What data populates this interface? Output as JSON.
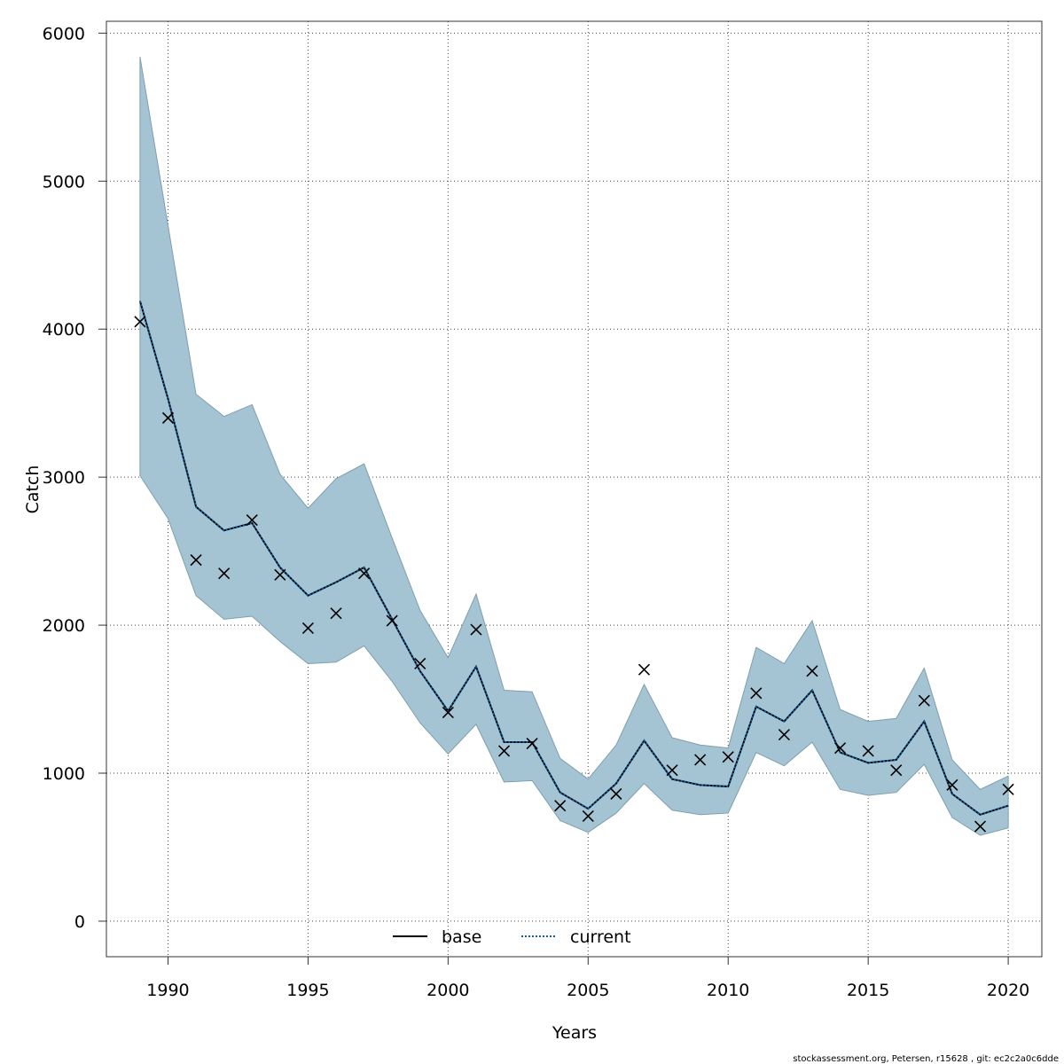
{
  "chart_data": {
    "type": "line",
    "xlabel": "Years",
    "ylabel": "Catch",
    "xlim": [
      1987.8,
      2021.2
    ],
    "ylim": [
      -240,
      6080
    ],
    "x_ticks": [
      1990,
      1995,
      2000,
      2005,
      2010,
      2015,
      2020
    ],
    "y_ticks": [
      0,
      1000,
      2000,
      3000,
      4000,
      5000,
      6000
    ],
    "grid": true,
    "legend_position": "bottom-center",
    "years": [
      1989,
      1990,
      1991,
      1992,
      1993,
      1994,
      1995,
      1996,
      1997,
      1998,
      1999,
      2000,
      2001,
      2002,
      2003,
      2004,
      2005,
      2006,
      2007,
      2008,
      2009,
      2010,
      2011,
      2012,
      2013,
      2014,
      2015,
      2016,
      2017,
      2018,
      2019,
      2020
    ],
    "band_color": "#a4c4d4",
    "band": {
      "upper": [
        5840,
        4700,
        3560,
        3410,
        3490,
        3020,
        2790,
        2990,
        3090,
        2590,
        2100,
        1780,
        2210,
        1560,
        1550,
        1100,
        960,
        1190,
        1600,
        1240,
        1190,
        1170,
        1850,
        1740,
        2030,
        1430,
        1350,
        1370,
        1710,
        1090,
        890,
        980
      ],
      "lower": [
        3010,
        2720,
        2200,
        2040,
        2060,
        1890,
        1740,
        1750,
        1860,
        1620,
        1340,
        1130,
        1330,
        940,
        950,
        680,
        600,
        730,
        930,
        750,
        720,
        730,
        1140,
        1050,
        1210,
        890,
        850,
        870,
        1060,
        700,
        580,
        630
      ]
    },
    "series": [
      {
        "name": "base",
        "color": "#000000",
        "line_style": "solid",
        "values": [
          4190,
          3530,
          2800,
          2640,
          2690,
          2390,
          2200,
          2290,
          2390,
          2040,
          1690,
          1420,
          1720,
          1210,
          1210,
          870,
          760,
          930,
          1220,
          960,
          920,
          910,
          1450,
          1350,
          1560,
          1140,
          1070,
          1090,
          1350,
          860,
          720,
          780
        ]
      },
      {
        "name": "current",
        "color": "#0b5f9e",
        "line_style": "dotted",
        "values": [
          4190,
          3530,
          2800,
          2640,
          2690,
          2390,
          2200,
          2290,
          2390,
          2040,
          1690,
          1420,
          1720,
          1210,
          1210,
          870,
          760,
          930,
          1220,
          960,
          920,
          910,
          1450,
          1350,
          1560,
          1140,
          1070,
          1090,
          1350,
          860,
          720,
          780
        ]
      }
    ],
    "observed": {
      "marker": "x",
      "color": "#000000",
      "values": [
        4050,
        3400,
        2440,
        2350,
        2710,
        2340,
        1980,
        2080,
        2350,
        2030,
        1740,
        1410,
        1970,
        1150,
        1200,
        780,
        710,
        860,
        1700,
        1020,
        1090,
        1110,
        1540,
        1260,
        1690,
        1170,
        1150,
        1020,
        1490,
        920,
        640,
        890
      ]
    },
    "footer": "stockassessment.org, Petersen, r15628 , git: ec2c2a0c6dde"
  }
}
